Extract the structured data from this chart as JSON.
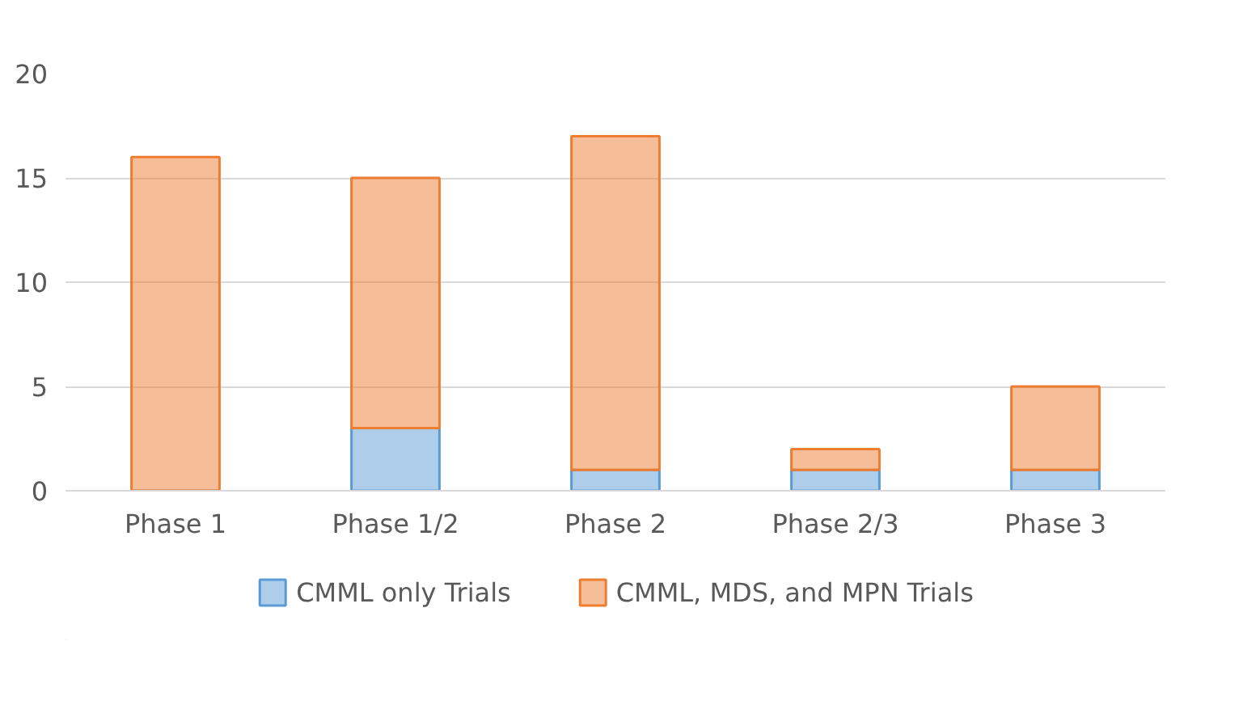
{
  "chart_data": {
    "type": "bar",
    "stacked": true,
    "categories": [
      "Phase 1",
      "Phase 1/2",
      "Phase 2",
      "Phase 2/3",
      "Phase 3"
    ],
    "series": [
      {
        "name": "CMML only Trials",
        "color": "#5b9bd5",
        "values": [
          0,
          3,
          1,
          1,
          1
        ]
      },
      {
        "name": "CMML, MDS, and MPN Trials",
        "color": "#ed7d31",
        "values": [
          16,
          12,
          16,
          1,
          4
        ]
      }
    ],
    "ylim": [
      0,
      20
    ],
    "yticks": [
      0,
      5,
      10,
      15,
      20
    ],
    "grid": "y",
    "legend": "bottom"
  }
}
